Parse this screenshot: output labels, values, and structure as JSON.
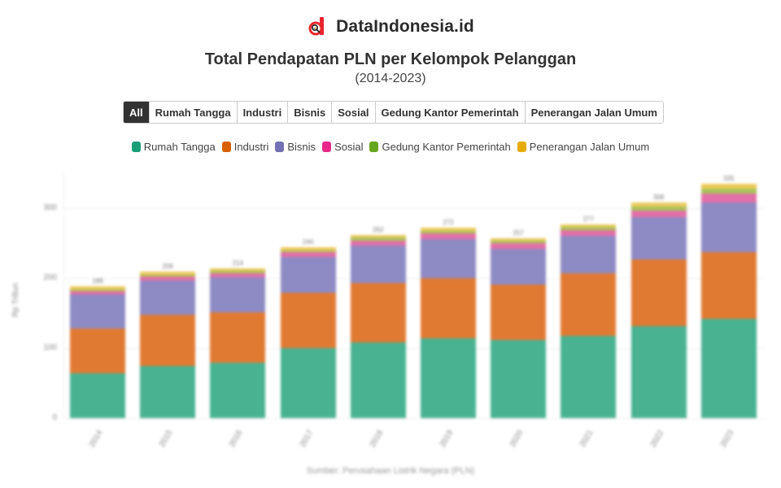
{
  "brand": {
    "name": "DataIndonesia.id",
    "logo_icon": "d-magnifier-logo",
    "logo_color": "#e8262d"
  },
  "header": {
    "title": "Total Pendapatan PLN per Kelompok Pelanggan",
    "subtitle": "(2014-2023)"
  },
  "tabs": [
    {
      "label": "All",
      "active": true
    },
    {
      "label": "Rumah Tangga",
      "active": false
    },
    {
      "label": "Industri",
      "active": false
    },
    {
      "label": "Bisnis",
      "active": false
    },
    {
      "label": "Sosial",
      "active": false
    },
    {
      "label": "Gedung Kantor Pemerintah",
      "active": false
    },
    {
      "label": "Penerangan Jalan Umum",
      "active": false
    }
  ],
  "legend": [
    {
      "label": "Rumah Tangga",
      "color": "#1b9e77"
    },
    {
      "label": "Industri",
      "color": "#d95f02"
    },
    {
      "label": "Bisnis",
      "color": "#7570b3"
    },
    {
      "label": "Sosial",
      "color": "#e7298a"
    },
    {
      "label": "Gedung Kantor Pemerintah",
      "color": "#66a61e"
    },
    {
      "label": "Penerangan Jalan Umum",
      "color": "#e6ab02"
    }
  ],
  "chart_data": {
    "type": "bar",
    "stacked": true,
    "title": "Total Pendapatan PLN per Kelompok Pelanggan",
    "subtitle": "(2014-2023)",
    "xlabel": "",
    "ylabel": "Rp Triliun",
    "ylim": [
      0,
      340
    ],
    "yticks": [
      "0",
      "100",
      "200",
      "300"
    ],
    "grid": true,
    "legend_position": "top",
    "categories": [
      "2014",
      "2015",
      "2016",
      "2017",
      "2018",
      "2019",
      "2020",
      "2021",
      "2022",
      "2023"
    ],
    "series": [
      {
        "name": "Rumah Tangga",
        "color": "#48b291",
        "values": [
          64,
          74,
          79,
          100,
          108,
          114,
          112,
          117,
          131,
          142
        ]
      },
      {
        "name": "Industri",
        "color": "#e07a33",
        "values": [
          64,
          74,
          72,
          79,
          85,
          86,
          79,
          90,
          96,
          95
        ]
      },
      {
        "name": "Bisnis",
        "color": "#8e8ac4",
        "values": [
          49,
          49,
          50,
          51,
          54,
          56,
          51,
          53,
          60,
          71
        ]
      },
      {
        "name": "Sosial",
        "color": "#e36fa8",
        "values": [
          4,
          5,
          6,
          7,
          7,
          8,
          8,
          9,
          10,
          13
        ]
      },
      {
        "name": "Gedung Kantor Pemerintah",
        "color": "#a8c45a",
        "values": [
          3,
          3,
          3,
          3,
          4,
          4,
          3,
          4,
          5,
          7
        ]
      },
      {
        "name": "Penerangan Jalan Umum",
        "color": "#ecc95a",
        "values": [
          4,
          4,
          4,
          4,
          4,
          4,
          4,
          4,
          6,
          7
        ]
      }
    ],
    "totals": [
      188,
      209,
      214,
      244,
      262,
      272,
      257,
      277,
      308,
      335
    ],
    "source": "Sumber: Perusahaan Listrik Negara (PLN)"
  }
}
